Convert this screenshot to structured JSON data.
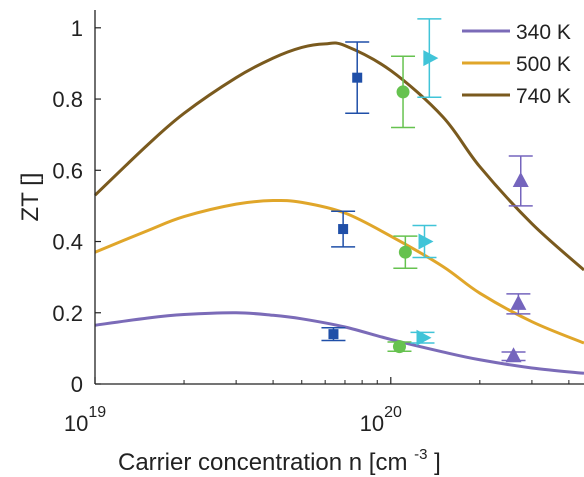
{
  "chart_data": {
    "type": "line",
    "title": "",
    "xlabel": "Carrier concentration n [cm",
    "xlabel_sup": "-3",
    "xlabel_close": "]",
    "ylabel": "ZT []",
    "xscale": "log",
    "xlim": [
      1e+19,
      4.5e+20
    ],
    "ylim": [
      0,
      1.05
    ],
    "grid": false,
    "legend_position": "top-right",
    "x_ticks": [
      {
        "value": 1e+19,
        "base": "10",
        "exp": "19"
      },
      {
        "value": 1e+20,
        "base": "10",
        "exp": "20"
      }
    ],
    "y_ticks": [
      {
        "value": 0,
        "label": "0"
      },
      {
        "value": 0.2,
        "label": "0.2"
      },
      {
        "value": 0.4,
        "label": "0.4"
      },
      {
        "value": 0.6,
        "label": "0.6"
      },
      {
        "value": 0.8,
        "label": "0.8"
      },
      {
        "value": 1,
        "label": "1"
      }
    ],
    "series": [
      {
        "name": "340 K",
        "color": "#7b6bb8",
        "x": [
          1e+19,
          1.5e+19,
          2e+19,
          3e+19,
          4e+19,
          5e+19,
          7e+19,
          1e+20,
          1.5e+20,
          2e+20,
          3e+20,
          4.5e+20
        ],
        "y": [
          0.165,
          0.185,
          0.195,
          0.2,
          0.193,
          0.183,
          0.16,
          0.125,
          0.09,
          0.068,
          0.045,
          0.03
        ]
      },
      {
        "name": "500 K",
        "color": "#e0a62a",
        "x": [
          1e+19,
          1.5e+19,
          2e+19,
          3e+19,
          4e+19,
          5e+19,
          7e+19,
          1e+20,
          1.5e+20,
          2e+20,
          3e+20,
          4.5e+20
        ],
        "y": [
          0.37,
          0.43,
          0.47,
          0.505,
          0.515,
          0.51,
          0.48,
          0.415,
          0.33,
          0.255,
          0.175,
          0.115
        ]
      },
      {
        "name": "740 K",
        "color": "#7a5a1e",
        "x": [
          1e+19,
          1.5e+19,
          2e+19,
          3e+19,
          4e+19,
          5e+19,
          6e+19,
          7e+19,
          1e+20,
          1.5e+20,
          2e+20,
          3e+20,
          4.5e+20
        ],
        "y": [
          0.53,
          0.67,
          0.76,
          0.86,
          0.915,
          0.945,
          0.955,
          0.95,
          0.88,
          0.75,
          0.61,
          0.45,
          0.32
        ]
      }
    ],
    "measurements": [
      {
        "color": "#1f4fa8",
        "marker": "square",
        "points": [
          {
            "x": 7.7e+19,
            "y": 0.86,
            "err": 0.1
          },
          {
            "x": 6.9e+19,
            "y": 0.435,
            "err": 0.05
          },
          {
            "x": 6.4e+19,
            "y": 0.14,
            "err": 0.018
          }
        ]
      },
      {
        "color": "#66c24f",
        "marker": "circle",
        "points": [
          {
            "x": 1.1e+20,
            "y": 0.82,
            "err": 0.1
          },
          {
            "x": 1.12e+20,
            "y": 0.37,
            "err": 0.045
          },
          {
            "x": 1.07e+20,
            "y": 0.105,
            "err": 0.013
          }
        ]
      },
      {
        "color": "#40c4d8",
        "marker": "triangle-right",
        "points": [
          {
            "x": 1.35e+20,
            "y": 0.915,
            "err": 0.11
          },
          {
            "x": 1.3e+20,
            "y": 0.4,
            "err": 0.045
          },
          {
            "x": 1.28e+20,
            "y": 0.13,
            "err": 0.015
          }
        ]
      },
      {
        "color": "#7565bd",
        "marker": "triangle-up",
        "points": [
          {
            "x": 2.75e+20,
            "y": 0.57,
            "err": 0.07
          },
          {
            "x": 2.7e+20,
            "y": 0.225,
            "err": 0.028
          },
          {
            "x": 2.6e+20,
            "y": 0.078,
            "err": 0.012
          }
        ]
      }
    ]
  }
}
